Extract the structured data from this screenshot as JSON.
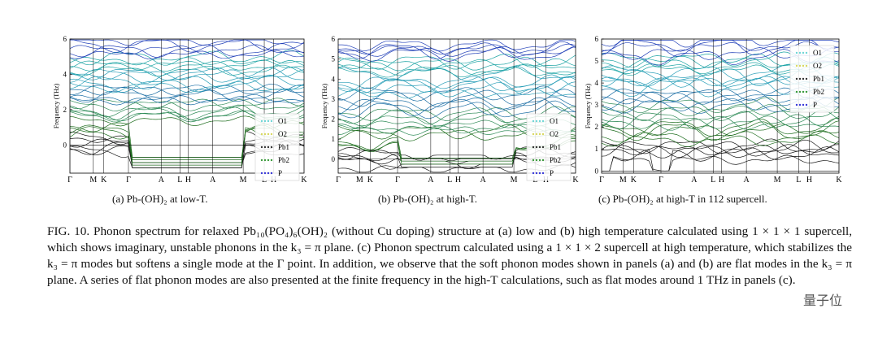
{
  "panels": [
    {
      "id": "a",
      "caption": "(a) Pb-(OH)₂ at low-T.",
      "ylabel": "Frequency (THz)",
      "yticks": [
        "6",
        "4",
        "2",
        "0"
      ],
      "ymin": -1.6,
      "ymax": 6,
      "kpath": [
        "Γ",
        "M",
        "K",
        "Γ",
        "A",
        "L",
        "H",
        "A",
        "M",
        "L",
        "H",
        "K"
      ],
      "legend": [
        "O1",
        "O2",
        "Pb1",
        "Pb2",
        "P"
      ]
    },
    {
      "id": "b",
      "caption": "(b) Pb-(OH)₂ at high-T.",
      "ylabel": "Frequency (THz)",
      "yticks": [
        "6",
        "5",
        "4",
        "3",
        "2",
        "1",
        "0"
      ],
      "ymin": -0.7,
      "ymax": 6,
      "kpath": [
        "Γ",
        "M",
        "K",
        "Γ",
        "A",
        "L",
        "H",
        "A",
        "M",
        "L",
        "H",
        "K"
      ],
      "legend": [
        "O1",
        "O2",
        "Pb1",
        "Pb2",
        "P"
      ]
    },
    {
      "id": "c",
      "caption": "(c) Pb-(OH)₂ at high-T in 112 supercell.",
      "ylabel": "Frequency (THz)",
      "yticks": [
        "6",
        "5",
        "4",
        "3",
        "2",
        "1",
        "0"
      ],
      "ymin": -0.1,
      "ymax": 6,
      "kpath": [
        "Γ",
        "M",
        "K",
        "Γ",
        "A",
        "L",
        "H",
        "A",
        "M",
        "L",
        "H",
        "K"
      ],
      "legend": [
        "O1",
        "O2",
        "Pb1",
        "Pb2",
        "P"
      ]
    }
  ],
  "legend_colors": [
    "#6fd6d6",
    "#d8d860",
    "#333333",
    "#3a9a3a",
    "#3838d8"
  ],
  "band_colors": [
    "#1a1a1a",
    "#1f6e1f",
    "#2e8b57",
    "#1d6fa5",
    "#2a9fb8",
    "#1fa5a5",
    "#2240b8"
  ],
  "figure_caption": "FIG. 10. Phonon spectrum for relaxed Pb₁₀(PO₄)₆(OH)₂ (without Cu doping) structure at (a) low and (b) high temperature calculated using 1 × 1 × 1 supercell, which shows imaginary, unstable phonons in the k₃ = π plane. (c) Phonon spectrum calculated using a 1 × 1 × 2 supercell at high temperature, which stabilizes the k₃ = π modes but softens a single mode at the Γ point. In addition, we observe that the soft phonon modes shown in panels (a) and (b) are flat modes in the k₃ = π plane. A series of flat phonon modes are also presented at the finite frequency in the high-T calculations, such as flat modes around 1 THz in panels (c).",
  "watermark": "量子位"
}
